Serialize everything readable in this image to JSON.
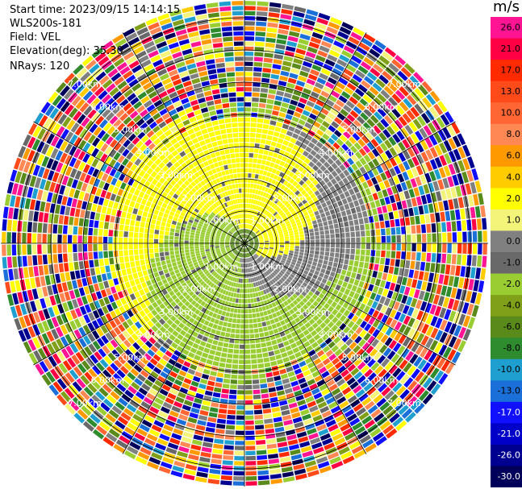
{
  "info": {
    "start_time": "Start time: 2023/09/15 14:14:15",
    "instrument": "WLS200s-181",
    "field": "Field: VEL",
    "elevation": "Elevation(deg): 35.30",
    "nrays": "NRays: 120"
  },
  "colorbar": {
    "unit": "m/s",
    "ticks": [
      "26.0",
      "21.0",
      "17.0",
      "13.0",
      "10.0",
      "8.0",
      "6.0",
      "4.0",
      "2.0",
      "1.0",
      "0.0",
      "-1.0",
      "-2.0",
      "-4.0",
      "-6.0",
      "-8.0",
      "-10.0",
      "-13.0",
      "-17.0",
      "-21.0",
      "-26.0",
      "-30.0"
    ],
    "colors": [
      "#ff1493",
      "#ff0044",
      "#ff2a00",
      "#ff4a1a",
      "#ff6633",
      "#ff8855",
      "#ff9900",
      "#ffcc00",
      "#ffff00",
      "#f4f37a",
      "#808080",
      "#696969",
      "#9acd32",
      "#7fa018",
      "#5a8a1a",
      "#2e8b2e",
      "#1e9fcf",
      "#1a6fd8",
      "#1010ff",
      "#0000c8",
      "#000090",
      "#00005a"
    ]
  },
  "range_rings": {
    "labels": [
      "1.00km",
      "2.00km",
      "3.00km",
      "4.00km",
      "5.00km",
      "6.00km",
      "7.00km"
    ]
  }
}
